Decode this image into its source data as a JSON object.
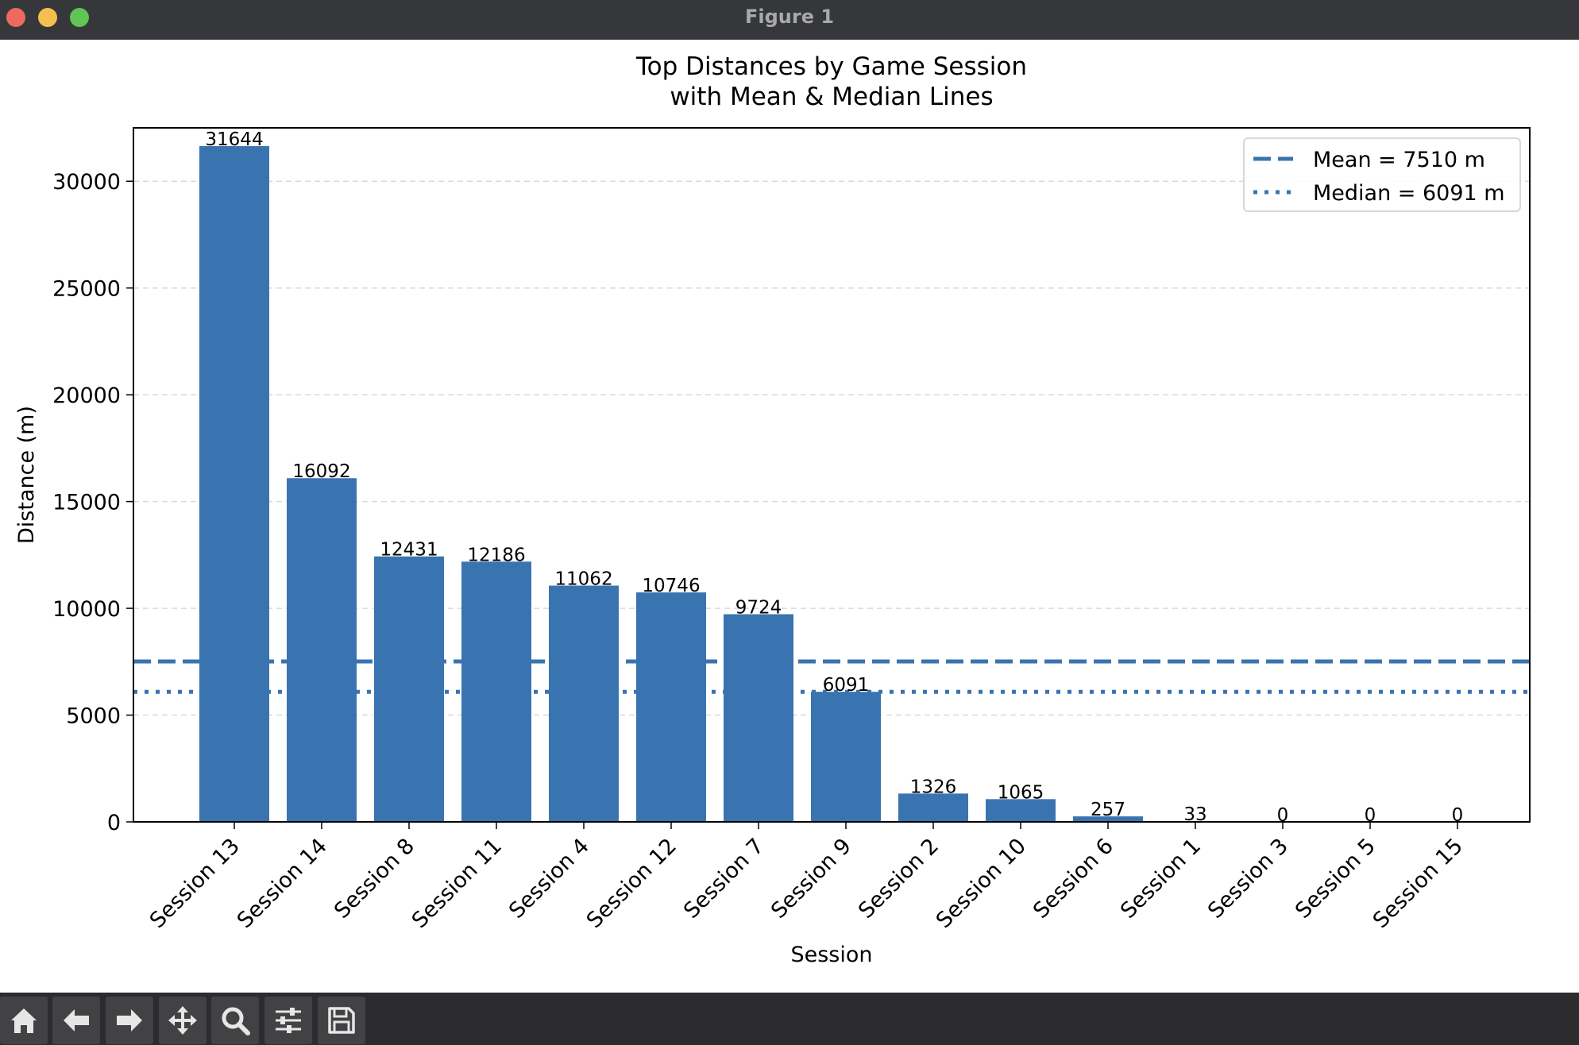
{
  "window": {
    "title": "Figure 1"
  },
  "toolbar": {
    "buttons": [
      {
        "name": "home-button",
        "icon": "home-icon"
      },
      {
        "name": "back-button",
        "icon": "arrow-left-icon"
      },
      {
        "name": "forward-button",
        "icon": "arrow-right-icon"
      },
      {
        "name": "pan-button",
        "icon": "move-icon"
      },
      {
        "name": "zoom-button",
        "icon": "magnifier-icon"
      },
      {
        "name": "configure-subplots-button",
        "icon": "sliders-icon"
      },
      {
        "name": "save-button",
        "icon": "floppy-disk-icon"
      }
    ]
  },
  "chart_data": {
    "type": "bar",
    "title": "Top Distances by Game Session\nwith Mean & Median Lines",
    "xlabel": "Session",
    "ylabel": "Distance (m)",
    "ylim": [
      0,
      32500
    ],
    "yticks": [
      0,
      5000,
      10000,
      15000,
      20000,
      25000,
      30000
    ],
    "grid": "y-dashed",
    "categories": [
      "Session 13",
      "Session 14",
      "Session 8",
      "Session 11",
      "Session 4",
      "Session 12",
      "Session 7",
      "Session 9",
      "Session 2",
      "Session 10",
      "Session 6",
      "Session 1",
      "Session 3",
      "Session 5",
      "Session 15"
    ],
    "values": [
      31644,
      16092,
      12431,
      12186,
      11062,
      10746,
      9724,
      6091,
      1326,
      1065,
      257,
      33,
      0,
      0,
      0
    ],
    "bar_color": "#3a74b0",
    "lines": [
      {
        "label": "Mean = 7510 m",
        "value": 7510,
        "style": "dashed"
      },
      {
        "label": "Median = 6091 m",
        "value": 6091,
        "style": "dotted"
      }
    ],
    "legend_position": "top-right"
  }
}
